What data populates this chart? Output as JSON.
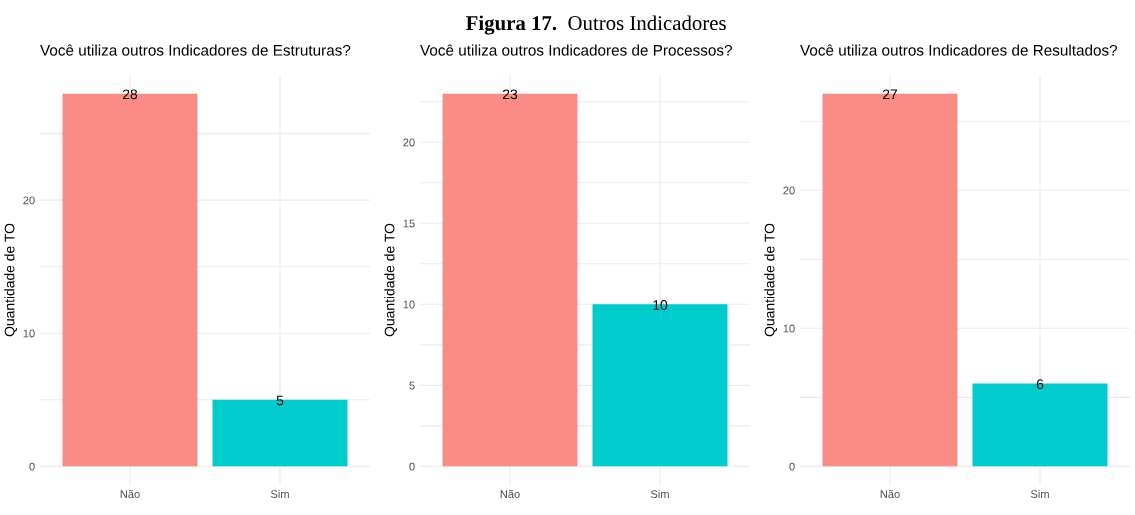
{
  "chart_data": [
    {
      "type": "bar",
      "title": "Você utiliza outros Indicadores de Estruturas?",
      "ylabel": "Quantidade de TO",
      "categories": [
        "Não",
        "Sim"
      ],
      "values": [
        28,
        5
      ],
      "colors": [
        "#fb8b85",
        "#00ccce"
      ],
      "ylim": [
        -1.4,
        29.4
      ],
      "yticks": [
        0,
        {
          "value": 5,
          "label": null
        },
        10,
        {
          "value": 15,
          "label": null
        },
        20,
        {
          "value": 25,
          "label": null
        }
      ],
      "grid": true,
      "data_labels": true,
      "annotations": [
        "Figura 17.",
        "Outros Indicadores"
      ]
    },
    {
      "type": "bar",
      "title": "Você utiliza outros Indicadores de Processos?",
      "ylabel": "Quantidade de TO",
      "categories": [
        "Não",
        "Sim"
      ],
      "values": [
        23,
        10
      ],
      "colors": [
        "#fb8b85",
        "#00ccce"
      ],
      "ylim": [
        -1.15,
        24.15
      ],
      "yticks": [
        0,
        {
          "value": 2.5,
          "label": null
        },
        5,
        {
          "value": 7.5,
          "label": null
        },
        10,
        {
          "value": 12.5,
          "label": null
        },
        15,
        {
          "value": 17.5,
          "label": null
        },
        20,
        {
          "value": 22.5,
          "label": null
        }
      ],
      "grid": true,
      "data_labels": true
    },
    {
      "type": "bar",
      "title": "Você utiliza outros Indicadores de Resultados?",
      "ylabel": "Quantidade de TO",
      "categories": [
        "Não",
        "Sim"
      ],
      "values": [
        27,
        6
      ],
      "colors": [
        "#fb8b85",
        "#00ccce"
      ],
      "ylim": [
        -1.35,
        28.35
      ],
      "yticks": [
        0,
        {
          "value": 5,
          "label": null
        },
        10,
        {
          "value": 15,
          "label": null
        },
        20,
        {
          "value": 25,
          "label": null
        }
      ],
      "grid": true,
      "data_labels": true
    }
  ]
}
